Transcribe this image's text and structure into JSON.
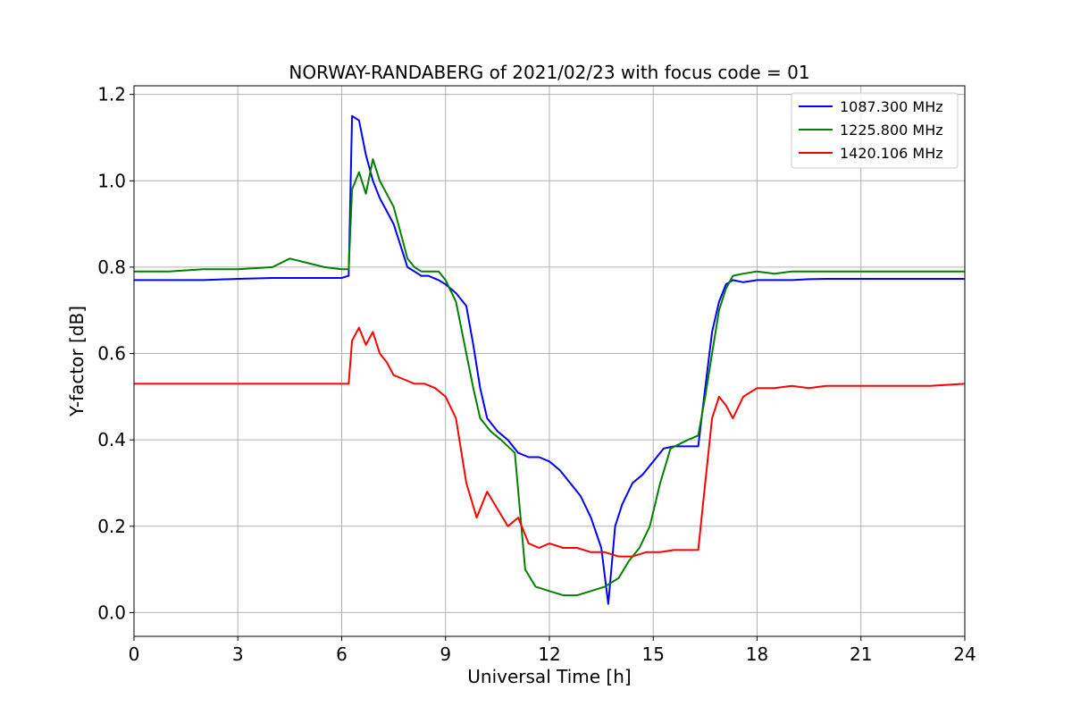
{
  "chart_data": {
    "type": "line",
    "title": "NORWAY-RANDABERG of 2021/02/23 with focus code = 01",
    "xlabel": "Universal Time [h]",
    "ylabel": "Y-factor [dB]",
    "xlim": [
      0,
      24
    ],
    "ylim": [
      -0.055,
      1.22
    ],
    "xticks": [
      0,
      3,
      6,
      9,
      12,
      15,
      18,
      21,
      24
    ],
    "xtick_labels": [
      "0",
      "3",
      "6",
      "9",
      "12",
      "15",
      "18",
      "21",
      "24"
    ],
    "yticks": [
      0.0,
      0.2,
      0.4,
      0.6,
      0.8,
      1.0,
      1.2
    ],
    "ytick_labels": [
      "0.0",
      "0.2",
      "0.4",
      "0.6",
      "0.8",
      "1.0",
      "1.2"
    ],
    "grid": true,
    "legend_position": "top-right",
    "series": [
      {
        "name": "1087.300 MHz",
        "color": "#0000ff",
        "x": [
          0,
          1,
          2,
          3,
          4,
          5,
          6,
          6.2,
          6.3,
          6.5,
          6.7,
          6.9,
          7.1,
          7.3,
          7.5,
          7.7,
          7.9,
          8.1,
          8.3,
          8.5,
          8.8,
          9.0,
          9.3,
          9.6,
          9.8,
          10.0,
          10.2,
          10.5,
          10.8,
          11.1,
          11.4,
          11.7,
          12.0,
          12.3,
          12.6,
          12.9,
          13.2,
          13.5,
          13.7,
          13.9,
          14.1,
          14.4,
          14.7,
          15.0,
          15.3,
          15.6,
          16.0,
          16.3,
          16.5,
          16.7,
          16.9,
          17.1,
          17.3,
          17.6,
          18.0,
          18.5,
          19.0,
          19.5,
          20,
          21,
          22,
          23,
          24
        ],
        "y": [
          0.77,
          0.77,
          0.77,
          0.773,
          0.775,
          0.775,
          0.775,
          0.78,
          1.15,
          1.14,
          1.06,
          1.0,
          0.96,
          0.93,
          0.9,
          0.85,
          0.8,
          0.79,
          0.78,
          0.78,
          0.77,
          0.76,
          0.74,
          0.71,
          0.62,
          0.52,
          0.45,
          0.42,
          0.4,
          0.37,
          0.36,
          0.36,
          0.35,
          0.33,
          0.3,
          0.27,
          0.22,
          0.15,
          0.02,
          0.2,
          0.25,
          0.3,
          0.32,
          0.35,
          0.38,
          0.385,
          0.385,
          0.385,
          0.52,
          0.65,
          0.72,
          0.76,
          0.77,
          0.765,
          0.77,
          0.77,
          0.77,
          0.772,
          0.773,
          0.773,
          0.773,
          0.773,
          0.773
        ]
      },
      {
        "name": "1225.800 MHz",
        "color": "#008000",
        "x": [
          0,
          1,
          2,
          3,
          4,
          4.5,
          5,
          5.5,
          6,
          6.2,
          6.3,
          6.5,
          6.7,
          6.9,
          7.1,
          7.3,
          7.5,
          7.7,
          7.9,
          8.1,
          8.3,
          8.5,
          8.8,
          9.0,
          9.3,
          9.6,
          9.8,
          10.0,
          10.3,
          10.6,
          11.0,
          11.3,
          11.6,
          12.0,
          12.4,
          12.8,
          13.2,
          13.6,
          14.0,
          14.3,
          14.6,
          14.9,
          15.2,
          15.5,
          16.0,
          16.3,
          16.5,
          16.7,
          16.9,
          17.1,
          17.3,
          17.6,
          18.0,
          18.5,
          19.0,
          19.5,
          20,
          21,
          22,
          23,
          24
        ],
        "y": [
          0.79,
          0.79,
          0.795,
          0.795,
          0.8,
          0.82,
          0.81,
          0.8,
          0.795,
          0.795,
          0.98,
          1.02,
          0.97,
          1.05,
          1.0,
          0.97,
          0.94,
          0.88,
          0.82,
          0.8,
          0.79,
          0.79,
          0.79,
          0.77,
          0.72,
          0.6,
          0.52,
          0.45,
          0.42,
          0.4,
          0.37,
          0.1,
          0.06,
          0.05,
          0.04,
          0.04,
          0.05,
          0.06,
          0.08,
          0.12,
          0.15,
          0.2,
          0.3,
          0.38,
          0.4,
          0.41,
          0.5,
          0.6,
          0.7,
          0.75,
          0.78,
          0.785,
          0.79,
          0.785,
          0.79,
          0.79,
          0.79,
          0.79,
          0.79,
          0.79,
          0.79
        ]
      },
      {
        "name": "1420.106 MHz",
        "color": "#ff0000",
        "x": [
          0,
          1,
          2,
          3,
          4,
          5,
          6,
          6.2,
          6.3,
          6.5,
          6.7,
          6.9,
          7.1,
          7.3,
          7.5,
          7.8,
          8.1,
          8.4,
          8.7,
          9.0,
          9.3,
          9.6,
          9.9,
          10.2,
          10.5,
          10.8,
          11.1,
          11.4,
          11.7,
          12.0,
          12.4,
          12.8,
          13.2,
          13.6,
          14.0,
          14.4,
          14.8,
          15.2,
          15.6,
          16.0,
          16.3,
          16.5,
          16.7,
          16.9,
          17.1,
          17.3,
          17.6,
          18.0,
          18.5,
          19.0,
          19.5,
          20,
          21,
          22,
          23,
          24
        ],
        "y": [
          0.53,
          0.53,
          0.53,
          0.53,
          0.53,
          0.53,
          0.53,
          0.53,
          0.63,
          0.66,
          0.62,
          0.65,
          0.6,
          0.58,
          0.55,
          0.54,
          0.53,
          0.53,
          0.52,
          0.5,
          0.45,
          0.3,
          0.22,
          0.28,
          0.24,
          0.2,
          0.22,
          0.16,
          0.15,
          0.16,
          0.15,
          0.15,
          0.14,
          0.14,
          0.13,
          0.13,
          0.14,
          0.14,
          0.145,
          0.145,
          0.145,
          0.3,
          0.45,
          0.5,
          0.48,
          0.45,
          0.5,
          0.52,
          0.52,
          0.525,
          0.52,
          0.525,
          0.525,
          0.525,
          0.525,
          0.53
        ]
      }
    ]
  }
}
